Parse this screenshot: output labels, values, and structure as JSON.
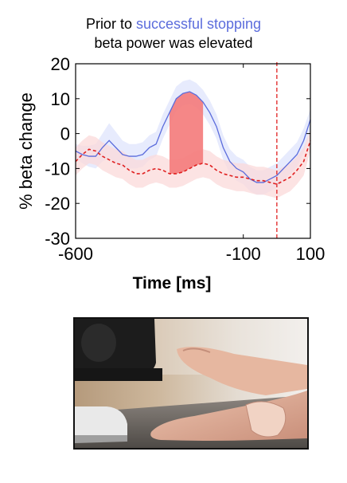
{
  "title": {
    "line1_prefix": "Prior to ",
    "line1_highlight": "successful stopping",
    "line2": "beta power was elevated"
  },
  "colors": {
    "successful": "#5b6cdc",
    "failed": "#e02020",
    "shade_successful": "#dfe4fc",
    "shade_failed": "#fbd9d9",
    "highlight": "#f47a7a"
  },
  "chart_data": {
    "type": "line",
    "title": "Prior to successful stopping beta power was elevated",
    "xlabel": "Time [ms]",
    "ylabel": "% beta change",
    "xlim": [
      -600,
      100
    ],
    "ylim": [
      -30,
      20
    ],
    "xticks": [
      -600,
      -100,
      100
    ],
    "yticks": [
      20,
      10,
      0,
      -10,
      -20,
      -30
    ],
    "x": [
      -600,
      -580,
      -560,
      -540,
      -520,
      -500,
      -480,
      -460,
      -440,
      -420,
      -400,
      -380,
      -360,
      -340,
      -320,
      -300,
      -280,
      -260,
      -240,
      -220,
      -200,
      -180,
      -160,
      -140,
      -120,
      -100,
      -80,
      -60,
      -40,
      -20,
      0,
      20,
      40,
      60,
      80,
      100
    ],
    "series": [
      {
        "style": "solid",
        "values": [
          -5,
          -6,
          -6.5,
          -6.5,
          -4,
          -2,
          -4,
          -6,
          -6.5,
          -6.5,
          -6,
          -4,
          -3,
          2,
          6,
          10,
          11.5,
          12,
          11,
          9,
          6,
          2,
          -4,
          -8,
          -10,
          -11,
          -13,
          -14,
          -14,
          -13,
          -12,
          -10,
          -8,
          -6,
          -2,
          4
        ],
        "band": [
          2,
          2.5,
          3,
          3.5,
          4,
          5,
          4.5,
          4,
          3.5,
          3.5,
          3.5,
          3.5,
          3.5,
          3.5,
          3.5,
          3.5,
          3.5,
          3.5,
          3.5,
          3.5,
          3.5,
          3.5,
          3.5,
          3.5,
          3.5,
          3.5,
          3.5,
          3.5,
          3.5,
          3.5,
          3.5,
          3.5,
          3.5,
          3.5,
          3.5,
          3
        ]
      },
      {
        "style": "dashed",
        "values": [
          -8,
          -6,
          -4.5,
          -5,
          -6.5,
          -7.5,
          -8.5,
          -9,
          -10.5,
          -11.5,
          -11.5,
          -10.5,
          -10,
          -10.5,
          -11.5,
          -11.5,
          -11,
          -10,
          -9,
          -8.5,
          -9,
          -10.5,
          -11.5,
          -12,
          -12.5,
          -12.5,
          -13,
          -13.5,
          -13.5,
          -14,
          -14.5,
          -13.5,
          -12.5,
          -10.5,
          -8,
          -2
        ],
        "band": [
          4,
          4,
          4,
          4,
          4,
          4,
          4,
          4,
          4,
          4,
          4,
          4,
          4,
          4,
          4,
          4,
          4,
          4,
          4,
          4,
          4,
          4,
          4,
          4,
          4,
          4,
          4,
          4,
          4,
          4,
          4,
          4,
          4,
          4,
          4,
          3
        ]
      }
    ],
    "highlight_region": {
      "x_start": -320,
      "x_end": -220
    },
    "vertical_line": {
      "x": 0,
      "style": "dashed"
    },
    "grid": false,
    "legend": "none"
  }
}
